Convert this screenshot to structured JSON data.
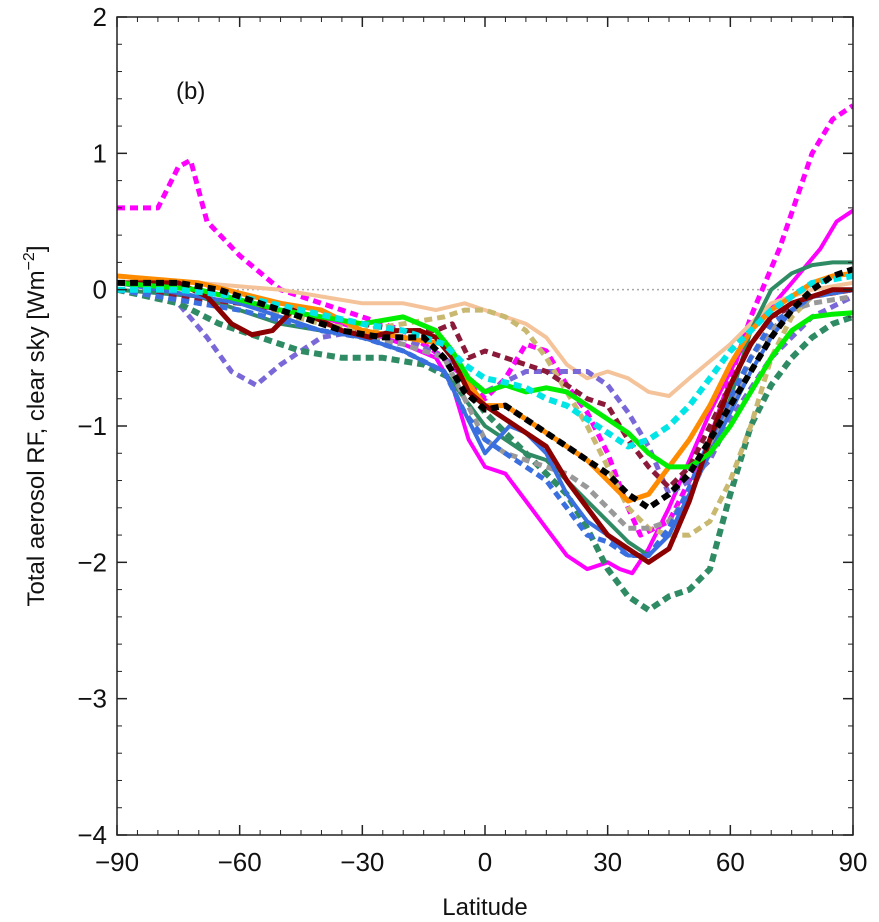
{
  "chart_data": {
    "type": "line",
    "panel_label": "(b)",
    "xlabel": "Latitude",
    "ylabel_main": "Total aerosol RF, clear sky [Wm",
    "ylabel_sup": "−2",
    "ylabel_end": "]",
    "xlim": [
      -90,
      90
    ],
    "ylim": [
      -4,
      2
    ],
    "xticks": [
      -90,
      -60,
      -30,
      0,
      30,
      60,
      90
    ],
    "xtick_labels": [
      "−90",
      "−60",
      "−30",
      "0",
      "30",
      "60",
      "90"
    ],
    "yticks": [
      -4,
      -3,
      -2,
      -1,
      0,
      1,
      2
    ],
    "ytick_labels": [
      "−4",
      "−3",
      "−2",
      "−1",
      "0",
      "1",
      "2"
    ],
    "zero_line": true,
    "grid": false,
    "legend": "none",
    "series": [
      {
        "color": "#ff00ff",
        "style": "dashed",
        "width": 5,
        "x": [
          -90,
          -80,
          -75,
          -72,
          -68,
          -60,
          -50,
          -40,
          -30,
          -20,
          -10,
          0,
          5,
          10,
          15,
          20,
          25,
          30,
          35,
          38,
          45,
          55,
          65,
          72,
          80,
          85,
          90
        ],
        "y": [
          0.6,
          0.6,
          0.9,
          0.95,
          0.5,
          0.25,
          0.0,
          -0.1,
          -0.2,
          -0.3,
          -0.5,
          -0.8,
          -0.65,
          -0.4,
          -0.45,
          -0.7,
          -0.9,
          -1.2,
          -1.6,
          -1.8,
          -1.7,
          -1.1,
          -0.2,
          0.3,
          1.0,
          1.25,
          1.35
        ]
      },
      {
        "color": "#ff00ff",
        "style": "solid",
        "width": 4,
        "x": [
          -90,
          -60,
          -40,
          -30,
          -20,
          -12,
          -8,
          -4,
          0,
          5,
          10,
          15,
          20,
          25,
          30,
          33,
          36,
          40,
          45,
          55,
          65,
          75,
          82,
          86,
          90
        ],
        "y": [
          0.05,
          -0.1,
          -0.2,
          -0.3,
          -0.4,
          -0.5,
          -0.7,
          -1.1,
          -1.3,
          -1.35,
          -1.55,
          -1.75,
          -1.95,
          -2.05,
          -2.0,
          -2.05,
          -2.08,
          -1.9,
          -1.6,
          -0.9,
          -0.3,
          0.05,
          0.3,
          0.5,
          0.58
        ]
      },
      {
        "color": "#f5c39a",
        "style": "solid",
        "width": 4,
        "x": [
          -90,
          -70,
          -50,
          -40,
          -30,
          -20,
          -12,
          -5,
          0,
          5,
          10,
          15,
          20,
          25,
          30,
          35,
          40,
          45,
          50,
          60,
          70,
          80,
          90
        ],
        "y": [
          0.05,
          0.05,
          0.0,
          -0.05,
          -0.1,
          -0.1,
          -0.15,
          -0.1,
          -0.15,
          -0.2,
          -0.25,
          -0.35,
          -0.55,
          -0.65,
          -0.6,
          -0.65,
          -0.75,
          -0.78,
          -0.65,
          -0.4,
          -0.1,
          0.0,
          0.05
        ]
      },
      {
        "color": "#7b68d8",
        "style": "dashed",
        "width": 5,
        "x": [
          -90,
          -75,
          -68,
          -62,
          -56,
          -50,
          -40,
          -30,
          -20,
          -10,
          0,
          10,
          20,
          25,
          30,
          35,
          40,
          45,
          50,
          55,
          60,
          70,
          80,
          90
        ],
        "y": [
          0.0,
          -0.1,
          -0.35,
          -0.6,
          -0.7,
          -0.55,
          -0.35,
          -0.3,
          -0.35,
          -0.5,
          -0.75,
          -0.6,
          -0.6,
          -0.6,
          -0.7,
          -0.9,
          -1.15,
          -1.5,
          -1.4,
          -1.25,
          -0.95,
          -0.5,
          -0.2,
          -0.05
        ]
      },
      {
        "color": "#2e8b64",
        "style": "solid",
        "width": 4,
        "x": [
          -90,
          -70,
          -50,
          -40,
          -30,
          -20,
          -10,
          -5,
          0,
          5,
          10,
          15,
          20,
          25,
          30,
          35,
          40,
          45,
          50,
          55,
          60,
          65,
          70,
          75,
          80,
          85,
          90
        ],
        "y": [
          0.0,
          -0.05,
          -0.25,
          -0.3,
          -0.35,
          -0.45,
          -0.6,
          -0.8,
          -1.0,
          -1.1,
          -1.2,
          -1.25,
          -1.4,
          -1.55,
          -1.7,
          -1.85,
          -1.95,
          -1.8,
          -1.5,
          -1.2,
          -0.8,
          -0.3,
          0.0,
          0.12,
          0.18,
          0.2,
          0.2
        ]
      },
      {
        "color": "#2e8b64",
        "style": "dashed",
        "width": 6,
        "x": [
          -90,
          -75,
          -65,
          -55,
          -45,
          -35,
          -25,
          -15,
          -5,
          0,
          5,
          10,
          15,
          20,
          25,
          30,
          35,
          40,
          45,
          50,
          55,
          60,
          65,
          70,
          75,
          80,
          85,
          90
        ],
        "y": [
          0.0,
          -0.1,
          -0.25,
          -0.35,
          -0.45,
          -0.5,
          -0.5,
          -0.55,
          -0.7,
          -0.9,
          -1.05,
          -1.2,
          -1.35,
          -1.5,
          -1.75,
          -2.05,
          -2.25,
          -2.35,
          -2.25,
          -2.2,
          -2.05,
          -1.5,
          -1.0,
          -0.7,
          -0.5,
          -0.35,
          -0.25,
          -0.2
        ]
      },
      {
        "color": "#c8b870",
        "style": "dashed",
        "width": 5,
        "x": [
          -90,
          -60,
          -40,
          -30,
          -20,
          -10,
          -5,
          0,
          5,
          10,
          15,
          20,
          25,
          30,
          35,
          40,
          45,
          50,
          55,
          60,
          65,
          70,
          75,
          80,
          90
        ],
        "y": [
          0.0,
          -0.1,
          -0.25,
          -0.3,
          -0.25,
          -0.2,
          -0.15,
          -0.15,
          -0.2,
          -0.3,
          -0.5,
          -0.75,
          -1.0,
          -1.3,
          -1.6,
          -1.75,
          -1.8,
          -1.8,
          -1.7,
          -1.4,
          -1.0,
          -0.5,
          -0.2,
          -0.05,
          0.0
        ]
      },
      {
        "color": "#999999",
        "style": "dashed",
        "width": 5,
        "x": [
          -90,
          -60,
          -40,
          -30,
          -20,
          -10,
          -5,
          0,
          5,
          10,
          15,
          20,
          25,
          30,
          35,
          40,
          45,
          50,
          55,
          60,
          65,
          70,
          75,
          80,
          90
        ],
        "y": [
          0.0,
          -0.15,
          -0.3,
          -0.35,
          -0.4,
          -0.5,
          -0.8,
          -1.1,
          -1.2,
          -1.25,
          -1.3,
          -1.35,
          -1.45,
          -1.6,
          -1.75,
          -1.75,
          -1.7,
          -1.5,
          -1.2,
          -0.85,
          -0.5,
          -0.3,
          -0.15,
          -0.1,
          -0.05
        ]
      },
      {
        "color": "#8b1a3a",
        "style": "dashed",
        "width": 5,
        "x": [
          -90,
          -60,
          -40,
          -30,
          -20,
          -12,
          -8,
          -4,
          0,
          5,
          10,
          15,
          20,
          25,
          30,
          35,
          40,
          45,
          50,
          55,
          60,
          65,
          70,
          80,
          90
        ],
        "y": [
          0.0,
          -0.1,
          -0.2,
          -0.25,
          -0.3,
          -0.3,
          -0.25,
          -0.5,
          -0.45,
          -0.5,
          -0.55,
          -0.6,
          -0.7,
          -0.8,
          -0.85,
          -1.1,
          -1.3,
          -1.45,
          -1.3,
          -1.0,
          -0.7,
          -0.4,
          -0.2,
          -0.05,
          0.0
        ]
      },
      {
        "color": "#3a6fe0",
        "style": "solid",
        "width": 4,
        "x": [
          -90,
          -60,
          -50,
          -40,
          -30,
          -20,
          -10,
          -5,
          0,
          3,
          6,
          10,
          15,
          20,
          25,
          30,
          35,
          40,
          45,
          50,
          55,
          60,
          65,
          70,
          75,
          80,
          90
        ],
        "y": [
          0.05,
          -0.1,
          -0.2,
          -0.3,
          -0.35,
          -0.45,
          -0.6,
          -0.9,
          -1.2,
          -1.1,
          -1.0,
          -1.05,
          -1.2,
          -1.5,
          -1.7,
          -1.8,
          -1.95,
          -1.95,
          -1.8,
          -1.5,
          -1.2,
          -0.9,
          -0.6,
          -0.35,
          -0.15,
          -0.05,
          0.0
        ]
      },
      {
        "color": "#3a6fe0",
        "style": "dashed",
        "width": 5,
        "x": [
          -90,
          -60,
          -40,
          -30,
          -20,
          -10,
          -5,
          0,
          5,
          10,
          15,
          20,
          25,
          30,
          35,
          40,
          45,
          50,
          55,
          60,
          65,
          70,
          80,
          90
        ],
        "y": [
          0.0,
          -0.15,
          -0.3,
          -0.35,
          -0.45,
          -0.6,
          -0.9,
          -1.1,
          -1.2,
          -1.3,
          -1.4,
          -1.6,
          -1.8,
          -1.85,
          -1.95,
          -1.95,
          -1.75,
          -1.45,
          -1.1,
          -0.8,
          -0.5,
          -0.25,
          -0.05,
          0.0
        ]
      },
      {
        "color": "#ff8c00",
        "style": "solid",
        "width": 5,
        "x": [
          -90,
          -70,
          -50,
          -40,
          -30,
          -20,
          -10,
          -5,
          0,
          5,
          10,
          15,
          20,
          25,
          30,
          35,
          40,
          45,
          50,
          55,
          60,
          65,
          70,
          75,
          80,
          85,
          90
        ],
        "y": [
          0.1,
          0.05,
          -0.1,
          -0.15,
          -0.3,
          -0.35,
          -0.4,
          -0.65,
          -0.85,
          -0.85,
          -0.95,
          -1.05,
          -1.15,
          -1.25,
          -1.4,
          -1.55,
          -1.5,
          -1.3,
          -1.1,
          -0.85,
          -0.55,
          -0.3,
          -0.15,
          -0.05,
          0.05,
          0.1,
          0.12
        ]
      },
      {
        "color": "#8b0000",
        "style": "solid",
        "width": 5,
        "x": [
          -90,
          -75,
          -68,
          -62,
          -57,
          -52,
          -47,
          -42,
          -35,
          -28,
          -22,
          -16,
          -12,
          -8,
          -4,
          0,
          5,
          10,
          15,
          20,
          25,
          30,
          35,
          40,
          45,
          50,
          55,
          60,
          65,
          70,
          75,
          80,
          85,
          90
        ],
        "y": [
          0.05,
          0.05,
          -0.05,
          -0.25,
          -0.33,
          -0.3,
          -0.15,
          -0.2,
          -0.3,
          -0.35,
          -0.3,
          -0.3,
          -0.35,
          -0.5,
          -0.75,
          -0.85,
          -0.95,
          -1.05,
          -1.15,
          -1.4,
          -1.6,
          -1.8,
          -1.9,
          -2.0,
          -1.9,
          -1.55,
          -1.1,
          -0.7,
          -0.4,
          -0.2,
          -0.1,
          -0.05,
          0.0,
          0.0
        ]
      },
      {
        "color": "#00ee00",
        "style": "solid",
        "width": 5,
        "x": [
          -90,
          -70,
          -50,
          -40,
          -30,
          -20,
          -12,
          -8,
          -4,
          0,
          5,
          10,
          15,
          20,
          25,
          30,
          35,
          40,
          45,
          50,
          55,
          60,
          65,
          70,
          75,
          80,
          85,
          90
        ],
        "y": [
          0.05,
          0.0,
          -0.15,
          -0.2,
          -0.25,
          -0.2,
          -0.3,
          -0.45,
          -0.65,
          -0.75,
          -0.7,
          -0.75,
          -0.72,
          -0.75,
          -0.85,
          -0.95,
          -1.05,
          -1.2,
          -1.3,
          -1.3,
          -1.2,
          -1.0,
          -0.75,
          -0.5,
          -0.3,
          -0.2,
          -0.18,
          -0.17
        ]
      },
      {
        "color": "#00e5e5",
        "style": "dashed",
        "width": 6,
        "x": [
          -90,
          -75,
          -60,
          -45,
          -30,
          -20,
          -10,
          -5,
          0,
          5,
          10,
          15,
          20,
          25,
          30,
          35,
          40,
          45,
          50,
          55,
          60,
          65,
          70,
          75,
          80,
          90
        ],
        "y": [
          0.0,
          0.0,
          -0.05,
          -0.15,
          -0.25,
          -0.3,
          -0.4,
          -0.55,
          -0.65,
          -0.68,
          -0.72,
          -0.8,
          -0.85,
          -0.95,
          -1.05,
          -1.15,
          -1.1,
          -1.0,
          -0.85,
          -0.65,
          -0.45,
          -0.3,
          -0.15,
          -0.05,
          0.05,
          0.1
        ]
      },
      {
        "color": "#000000",
        "style": "dashed",
        "width": 6,
        "x": [
          -90,
          -75,
          -65,
          -55,
          -45,
          -35,
          -25,
          -15,
          -10,
          -5,
          0,
          5,
          10,
          15,
          20,
          25,
          30,
          35,
          40,
          45,
          50,
          55,
          60,
          65,
          70,
          75,
          80,
          85,
          90
        ],
        "y": [
          0.05,
          0.05,
          0.0,
          -0.1,
          -0.2,
          -0.3,
          -0.35,
          -0.35,
          -0.5,
          -0.75,
          -0.88,
          -0.85,
          -0.95,
          -1.05,
          -1.15,
          -1.25,
          -1.35,
          -1.5,
          -1.6,
          -1.5,
          -1.35,
          -1.1,
          -0.85,
          -0.6,
          -0.35,
          -0.15,
          0.0,
          0.1,
          0.15
        ]
      }
    ]
  }
}
